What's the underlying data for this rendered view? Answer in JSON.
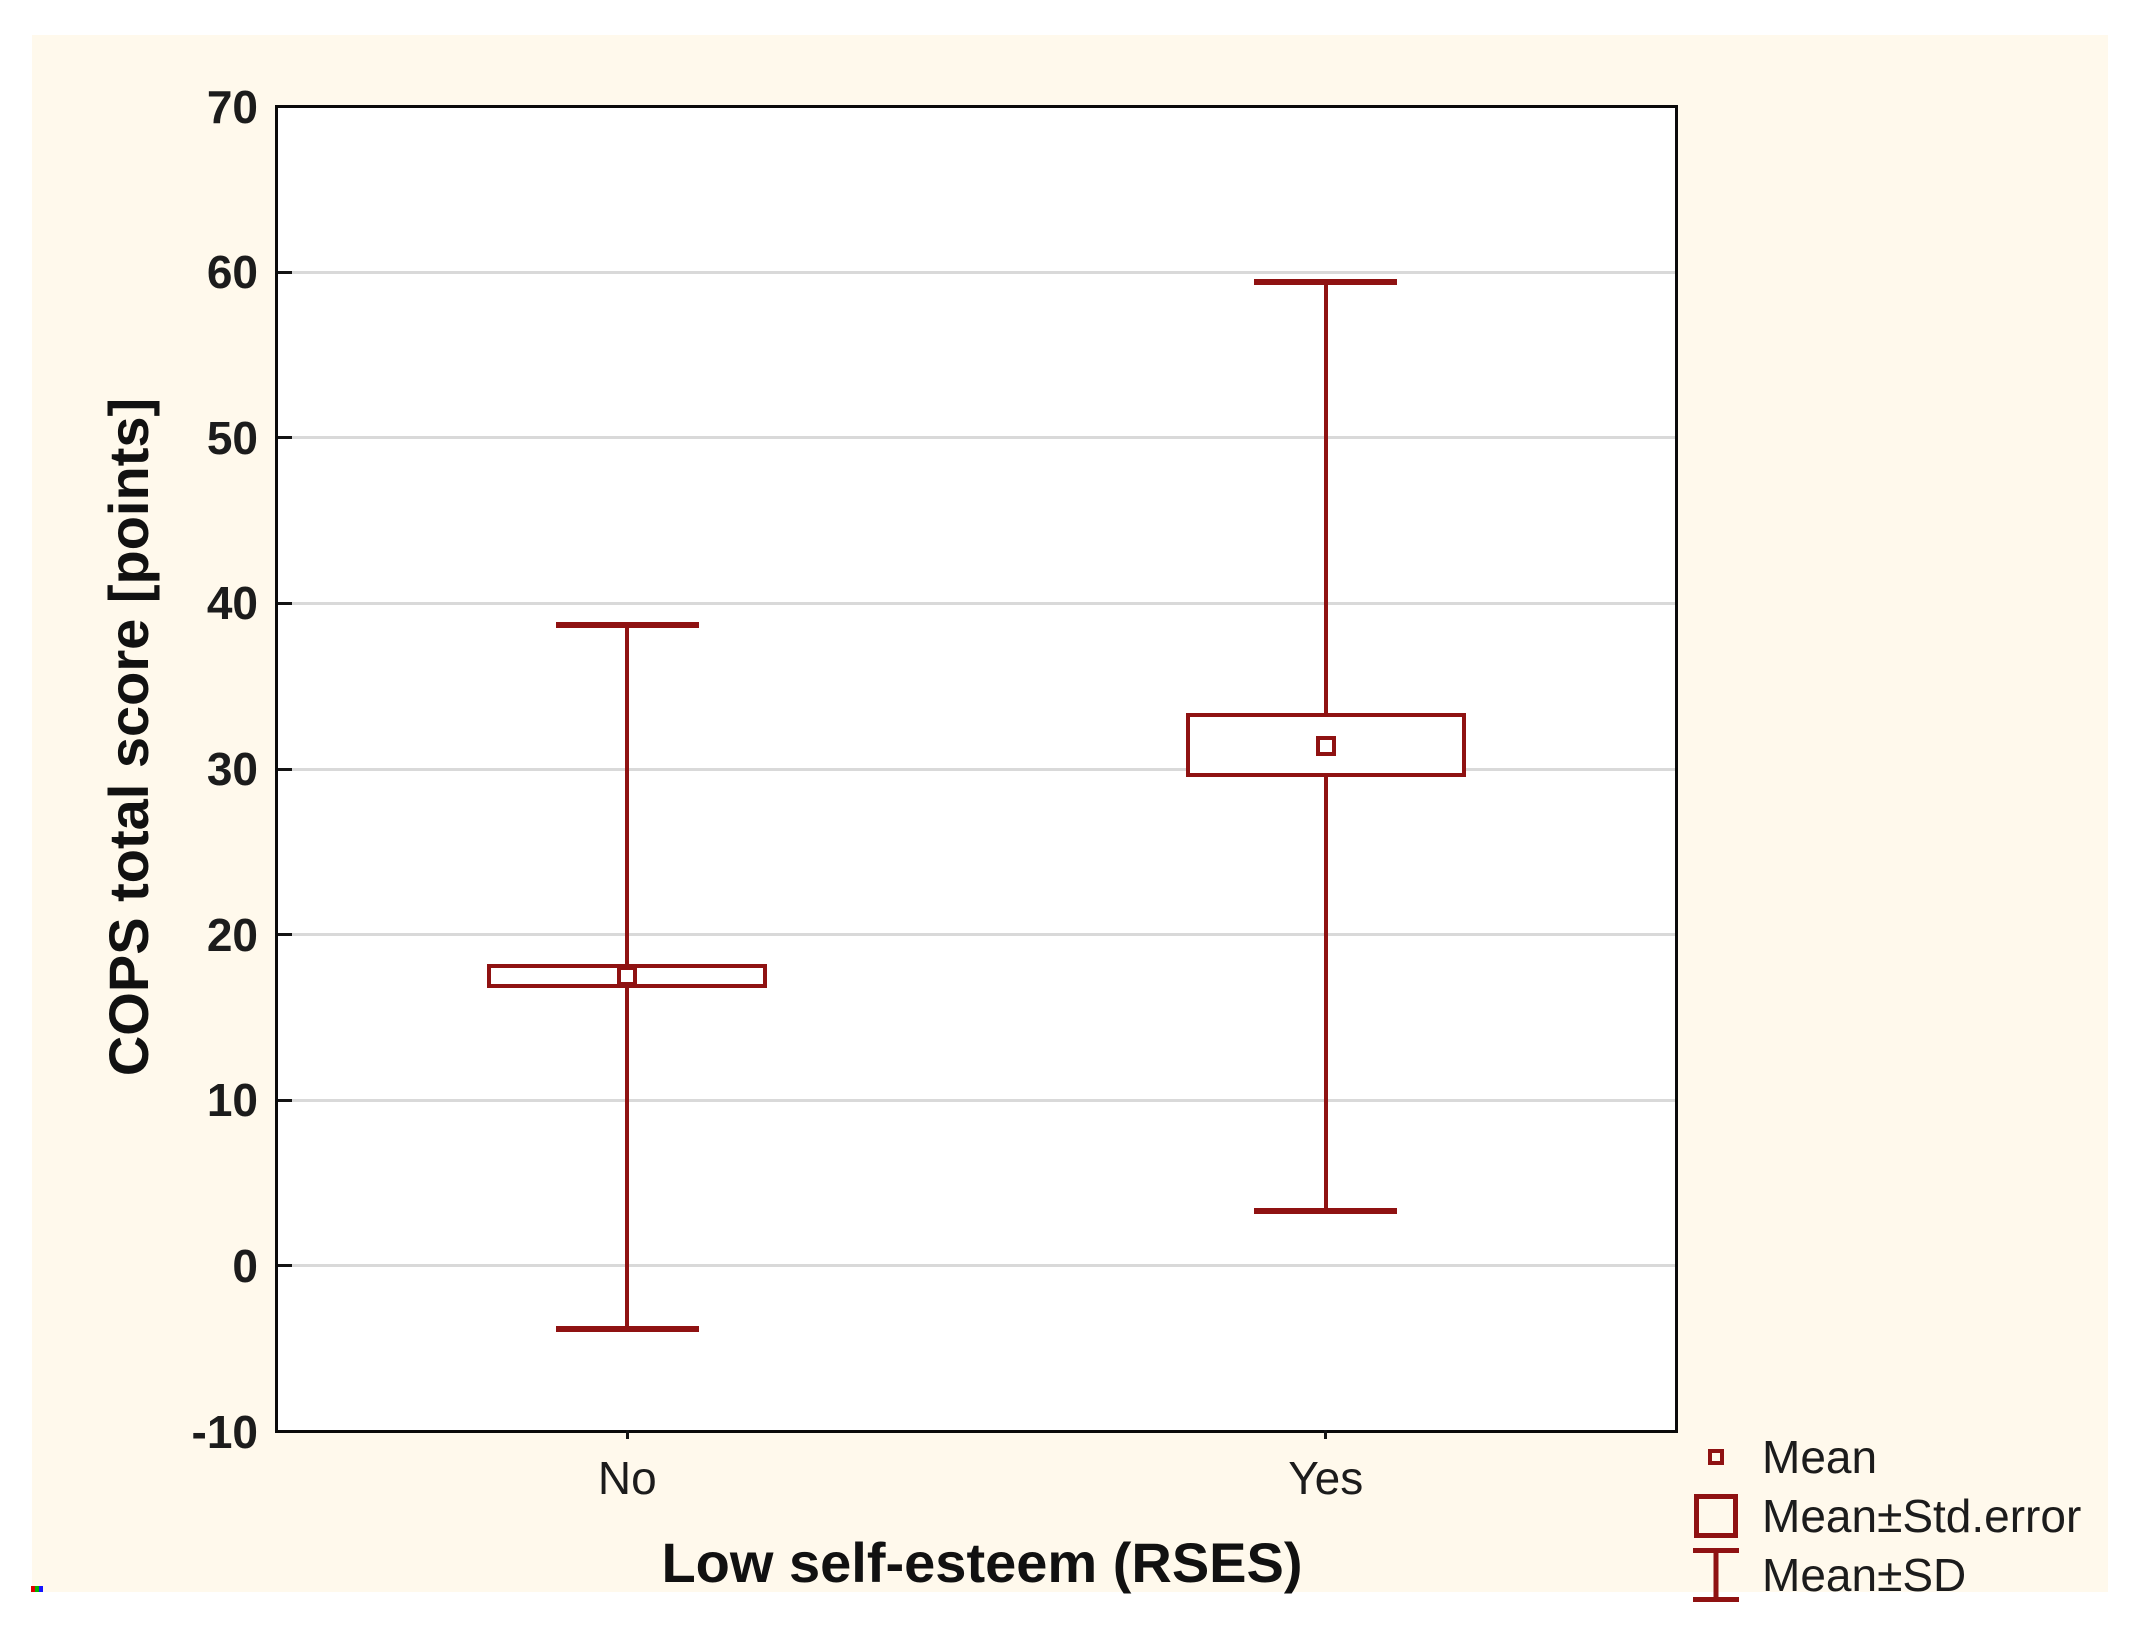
{
  "chart_data": {
    "type": "bar",
    "subtype": "mean-whisker-plot",
    "title": "",
    "xlabel": "Low self-esteem (RSES)",
    "ylabel": "COPS total score [points]",
    "ylim": [
      -10,
      70
    ],
    "yticks": [
      70,
      60,
      50,
      40,
      30,
      20,
      10,
      0,
      -10
    ],
    "grid": "horizontal-light-gray",
    "legend_position": "bottom-right-outside",
    "categories": [
      "No",
      "Yes"
    ],
    "series": [
      {
        "category": "No",
        "mean": 17.5,
        "se_low": 16.8,
        "se_high": 18.2,
        "sd_low": -3.8,
        "sd_high": 38.7
      },
      {
        "category": "Yes",
        "mean": 31.4,
        "se_low": 29.5,
        "se_high": 33.4,
        "sd_low": 3.3,
        "sd_high": 59.4
      }
    ],
    "legend": [
      {
        "icon": "mean-square-icon",
        "label": "Mean"
      },
      {
        "icon": "stderror-box-icon",
        "label": "Mean±Std.error"
      },
      {
        "icon": "sd-whisker-icon",
        "label": "Mean±SD"
      }
    ],
    "colors": {
      "series": "#8f1212",
      "grid": "#d9d9d9",
      "frame": "#0a0a0a",
      "text": "#1c1c1c",
      "panel_background": "#fff9ec",
      "plot_background": "#ffffff"
    }
  }
}
